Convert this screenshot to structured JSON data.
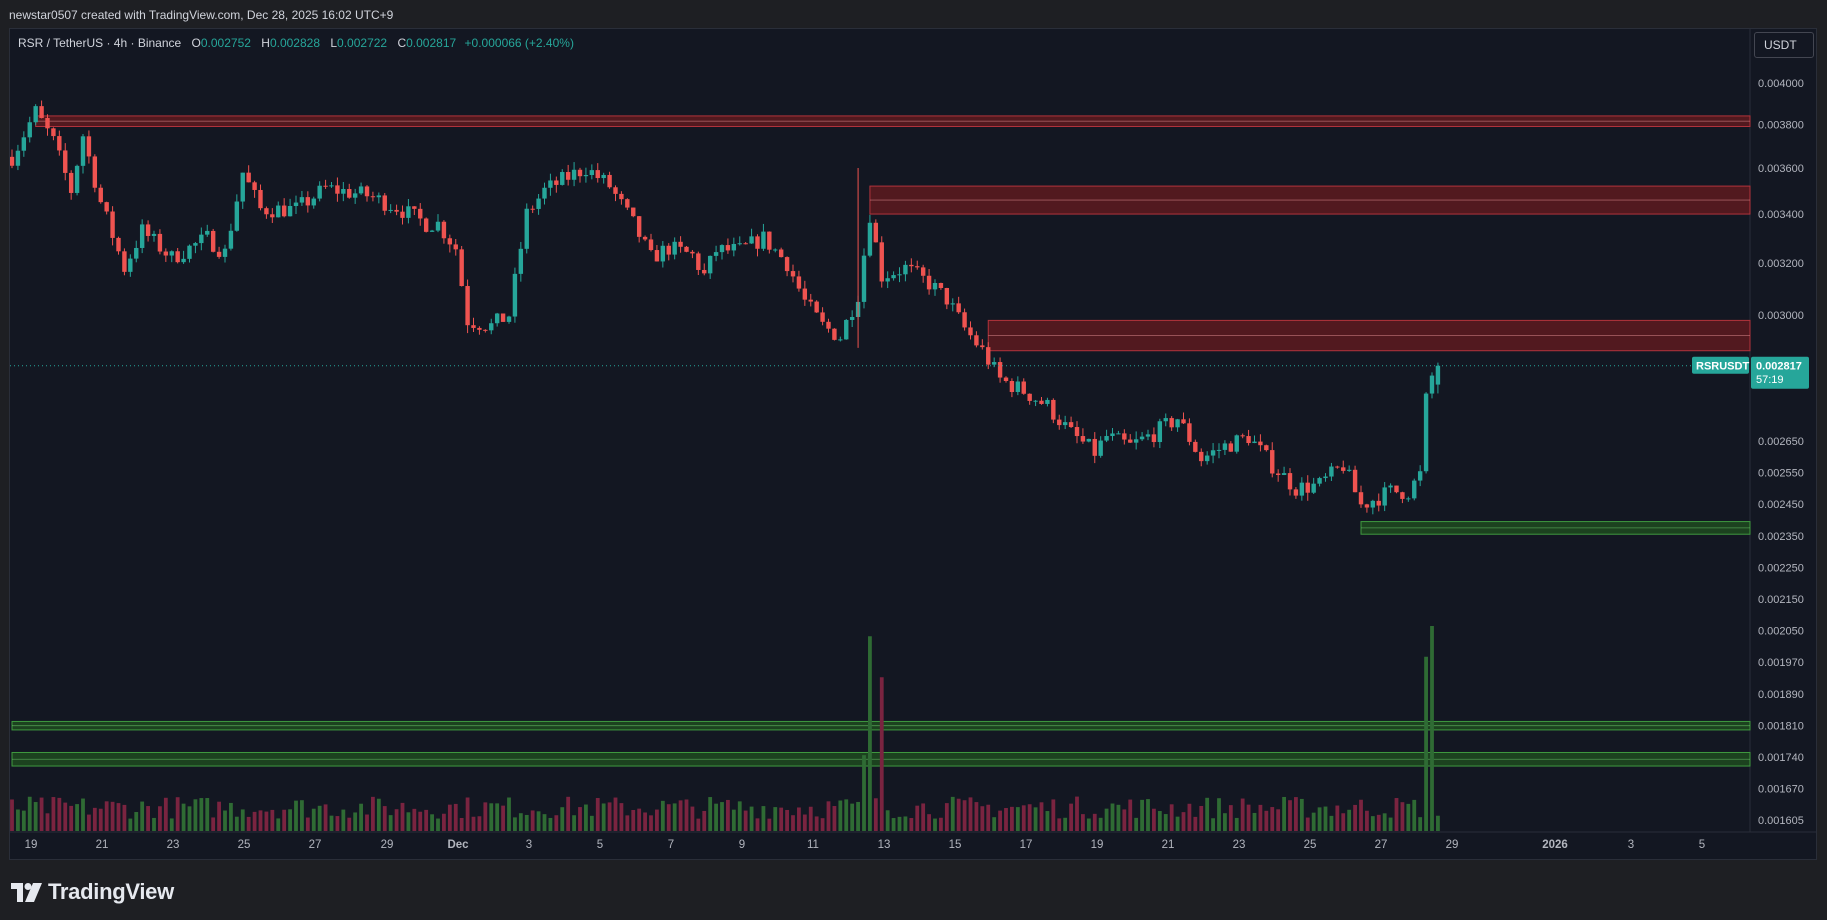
{
  "attribution": "newstar0507 created with TradingView.com, Dec 28, 2025 16:02 UTC+9",
  "legend": {
    "symbol": "RSR / TetherUS · 4h · Binance",
    "o_label": "O",
    "o": "0.002752",
    "h_label": "H",
    "h": "0.002828",
    "l_label": "L",
    "l": "0.002722",
    "c_label": "C",
    "c": "0.002817",
    "change": "+0.000066 (+2.40%)"
  },
  "currency_button": "USDT",
  "price_tag": {
    "symbol": "RSRUSDT",
    "price": "0.002817",
    "countdown": "57:19"
  },
  "logo_text": "TradingView",
  "colors": {
    "up": "#26a69a",
    "down": "#ef5350",
    "up_volume": "#2f6b34",
    "down_volume": "#7a2440",
    "resistance_zone": "#5e1a1f",
    "support_zone": "#1f4a1f",
    "price_tag": "#26a69a",
    "background": "#131722"
  },
  "chart_data": {
    "type": "candlestick",
    "symbol": "RSRUSDT",
    "interval": "4h",
    "exchange": "Binance",
    "quote": "USDT",
    "x_ticks": [
      "19",
      "21",
      "23",
      "25",
      "27",
      "29",
      "Dec",
      "3",
      "5",
      "7",
      "9",
      "11",
      "13",
      "15",
      "17",
      "19",
      "21",
      "23",
      "25",
      "27",
      "29",
      "2026",
      "3",
      "5"
    ],
    "y_ticks": [
      "0.004000",
      "0.003800",
      "0.003600",
      "0.003400",
      "0.003200",
      "0.003000",
      "0.002650",
      "0.002550",
      "0.002450",
      "0.002350",
      "0.002250",
      "0.002150",
      "0.002050",
      "0.001970",
      "0.001890",
      "0.001810",
      "0.001740",
      "0.001670",
      "0.001605"
    ],
    "y_scale": "log",
    "last_price": 0.002817,
    "path": [
      [
        "Nov 18 12:00",
        0.00365
      ],
      [
        "Nov 19 04:00",
        0.00386
      ],
      [
        "Nov 19 16:00",
        0.00372
      ],
      [
        "Nov 20 04:00",
        0.0035
      ],
      [
        "Nov 20 12:00",
        0.00375
      ],
      [
        "Nov 21 00:00",
        0.00345
      ],
      [
        "Nov 21 16:00",
        0.00318
      ],
      [
        "Nov 22 04:00",
        0.00333
      ],
      [
        "Nov 23 00:00",
        0.00322
      ],
      [
        "Nov 24 00:00",
        0.0033
      ],
      [
        "Nov 24 12:00",
        0.00324
      ],
      [
        "Nov 25 00:00",
        0.00358
      ],
      [
        "Nov 25 12:00",
        0.00342
      ],
      [
        "Nov 26 12:00",
        0.00342
      ],
      [
        "Nov 27 08:00",
        0.00351
      ],
      [
        "Nov 28 12:00",
        0.00348
      ],
      [
        "Nov 29 08:00",
        0.00343
      ],
      [
        "Nov 30 04:00",
        0.00336
      ],
      [
        "Nov 30 12:00",
        0.00336
      ],
      [
        "Dec 1 00:00",
        0.00326
      ],
      [
        "Dec 1 08:00",
        0.00298
      ],
      [
        "Dec 2 00:00",
        0.00296
      ],
      [
        "Dec 2 12:00",
        0.003
      ],
      [
        "Dec 3 00:00",
        0.0034
      ],
      [
        "Dec 3 12:00",
        0.0035
      ],
      [
        "Dec 4 04:00",
        0.00356
      ],
      [
        "Dec 4 16:00",
        0.0036
      ],
      [
        "Dec 5 08:00",
        0.00352
      ],
      [
        "Dec 6 00:00",
        0.00336
      ],
      [
        "Dec 6 12:00",
        0.00322
      ],
      [
        "Dec 7 00:00",
        0.00326
      ],
      [
        "Dec 7 16:00",
        0.00323
      ],
      [
        "Dec 8 00:00",
        0.00315
      ],
      [
        "Dec 8 08:00",
        0.00325
      ],
      [
        "Dec 9 00:00",
        0.00325
      ],
      [
        "Dec 9 16:00",
        0.0033
      ],
      [
        "Dec 10 08:00",
        0.0032
      ],
      [
        "Dec 10 20:00",
        0.00305
      ],
      [
        "Dec 11 08:00",
        0.00296
      ],
      [
        "Dec 11 20:00",
        0.00292
      ],
      [
        "Dec 12 08:00",
        0.00308
      ],
      [
        "Dec 12 16:00",
        0.0034
      ],
      [
        "Dec 13 00:00",
        0.00315
      ],
      [
        "Dec 13 16:00",
        0.00318
      ],
      [
        "Dec 14 08:00",
        0.00312
      ],
      [
        "Dec 14 20:00",
        0.00306
      ],
      [
        "Dec 15 08:00",
        0.00295
      ],
      [
        "Dec 15 20:00",
        0.00287
      ],
      [
        "Dec 16 08:00",
        0.00277
      ],
      [
        "Dec 17 00:00",
        0.00273
      ],
      [
        "Dec 17 16:00",
        0.00268
      ],
      [
        "Dec 18 08:00",
        0.00259
      ],
      [
        "Dec 19 00:00",
        0.00253
      ],
      [
        "Dec 19 08:00",
        0.00258
      ],
      [
        "Dec 20 00:00",
        0.00255
      ],
      [
        "Dec 20 16:00",
        0.00259
      ],
      [
        "Dec 21 08:00",
        0.00264
      ],
      [
        "Dec 22 00:00",
        0.00251
      ],
      [
        "Dec 22 16:00",
        0.00255
      ],
      [
        "Dec 23 08:00",
        0.00258
      ],
      [
        "Dec 24 00:00",
        0.00249
      ],
      [
        "Dec 24 16:00",
        0.00242
      ],
      [
        "Dec 25 08:00",
        0.00243
      ],
      [
        "Dec 26 00:00",
        0.00249
      ],
      [
        "Dec 26 12:00",
        0.00237
      ],
      [
        "Dec 27 08:00",
        0.00241
      ],
      [
        "Dec 27 20:00",
        0.00241
      ],
      [
        "Dec 28 04:00",
        0.00246
      ],
      [
        "Dec 28 08:00",
        0.0027
      ],
      [
        "Dec 28 12:00",
        0.00278
      ],
      [
        "Dec 28 16:00",
        0.002817
      ]
    ],
    "zones": [
      {
        "type": "resistance",
        "from": "Nov 19 04:00",
        "to": "end",
        "low": 0.00379,
        "high": 0.00384
      },
      {
        "type": "resistance",
        "from": "Dec 12 16:00",
        "to": "end",
        "low": 0.0034,
        "high": 0.00352
      },
      {
        "type": "resistance",
        "from": "Dec 16 00:00",
        "to": "end",
        "low": 0.00287,
        "high": 0.00298
      },
      {
        "type": "support",
        "from": "Dec 26 12:00",
        "to": "end",
        "low": 0.002355,
        "high": 0.002395
      },
      {
        "type": "support",
        "from": "start",
        "to": "end",
        "low": 0.0018,
        "high": 0.00182
      },
      {
        "type": "support",
        "from": "start",
        "to": "end",
        "low": 0.00172,
        "high": 0.00175
      }
    ],
    "volume_spikes": [
      {
        "time": "Dec 12 12:00",
        "level": 0.37
      },
      {
        "time": "Dec 12 16:00",
        "level": 0.95
      },
      {
        "time": "Dec 13 00:00",
        "level": 0.75
      },
      {
        "time": "Dec 28 08:00",
        "level": 0.85
      },
      {
        "time": "Dec 28 12:00",
        "level": 1.0
      }
    ]
  }
}
